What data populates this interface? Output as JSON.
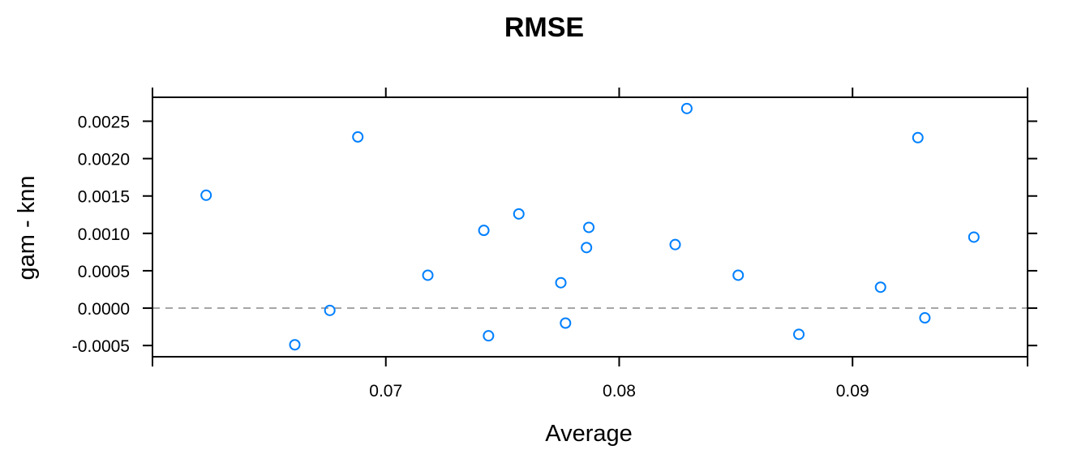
{
  "chart_data": {
    "type": "scatter",
    "title": "RMSE",
    "xlabel": "Average",
    "ylabel": "gam - knn",
    "xlim": [
      0.06,
      0.0975
    ],
    "ylim": [
      -0.00065,
      0.00282
    ],
    "xticks": [
      0.07,
      0.08,
      0.09
    ],
    "xtick_labels": [
      "0.07",
      "0.08",
      "0.09"
    ],
    "yticks": [
      -0.0005,
      0.0,
      0.0005,
      0.001,
      0.0015,
      0.002,
      0.0025
    ],
    "ytick_labels": [
      "-0.0005",
      "0.0000",
      "0.0005",
      "0.0010",
      "0.0015",
      "0.0020",
      "0.0025"
    ],
    "reference_line": {
      "y": 0.0,
      "style": "dashed",
      "color": "#a6a6a6"
    },
    "grid": false,
    "point_color": "#0080ff",
    "points": [
      {
        "x": 0.0623,
        "y": 0.00151
      },
      {
        "x": 0.0661,
        "y": -0.00049
      },
      {
        "x": 0.0676,
        "y": -3e-05
      },
      {
        "x": 0.0688,
        "y": 0.00229
      },
      {
        "x": 0.0718,
        "y": 0.00044
      },
      {
        "x": 0.0742,
        "y": 0.00104
      },
      {
        "x": 0.0744,
        "y": -0.00037
      },
      {
        "x": 0.0757,
        "y": 0.00126
      },
      {
        "x": 0.0775,
        "y": 0.00034
      },
      {
        "x": 0.0777,
        "y": -0.0002
      },
      {
        "x": 0.0786,
        "y": 0.00081
      },
      {
        "x": 0.0787,
        "y": 0.00108
      },
      {
        "x": 0.0824,
        "y": 0.00085
      },
      {
        "x": 0.0829,
        "y": 0.00267
      },
      {
        "x": 0.0851,
        "y": 0.00044
      },
      {
        "x": 0.0877,
        "y": -0.00035
      },
      {
        "x": 0.0912,
        "y": 0.00028
      },
      {
        "x": 0.0928,
        "y": 0.00228
      },
      {
        "x": 0.0931,
        "y": -0.00013
      },
      {
        "x": 0.0952,
        "y": 0.00095
      }
    ]
  }
}
